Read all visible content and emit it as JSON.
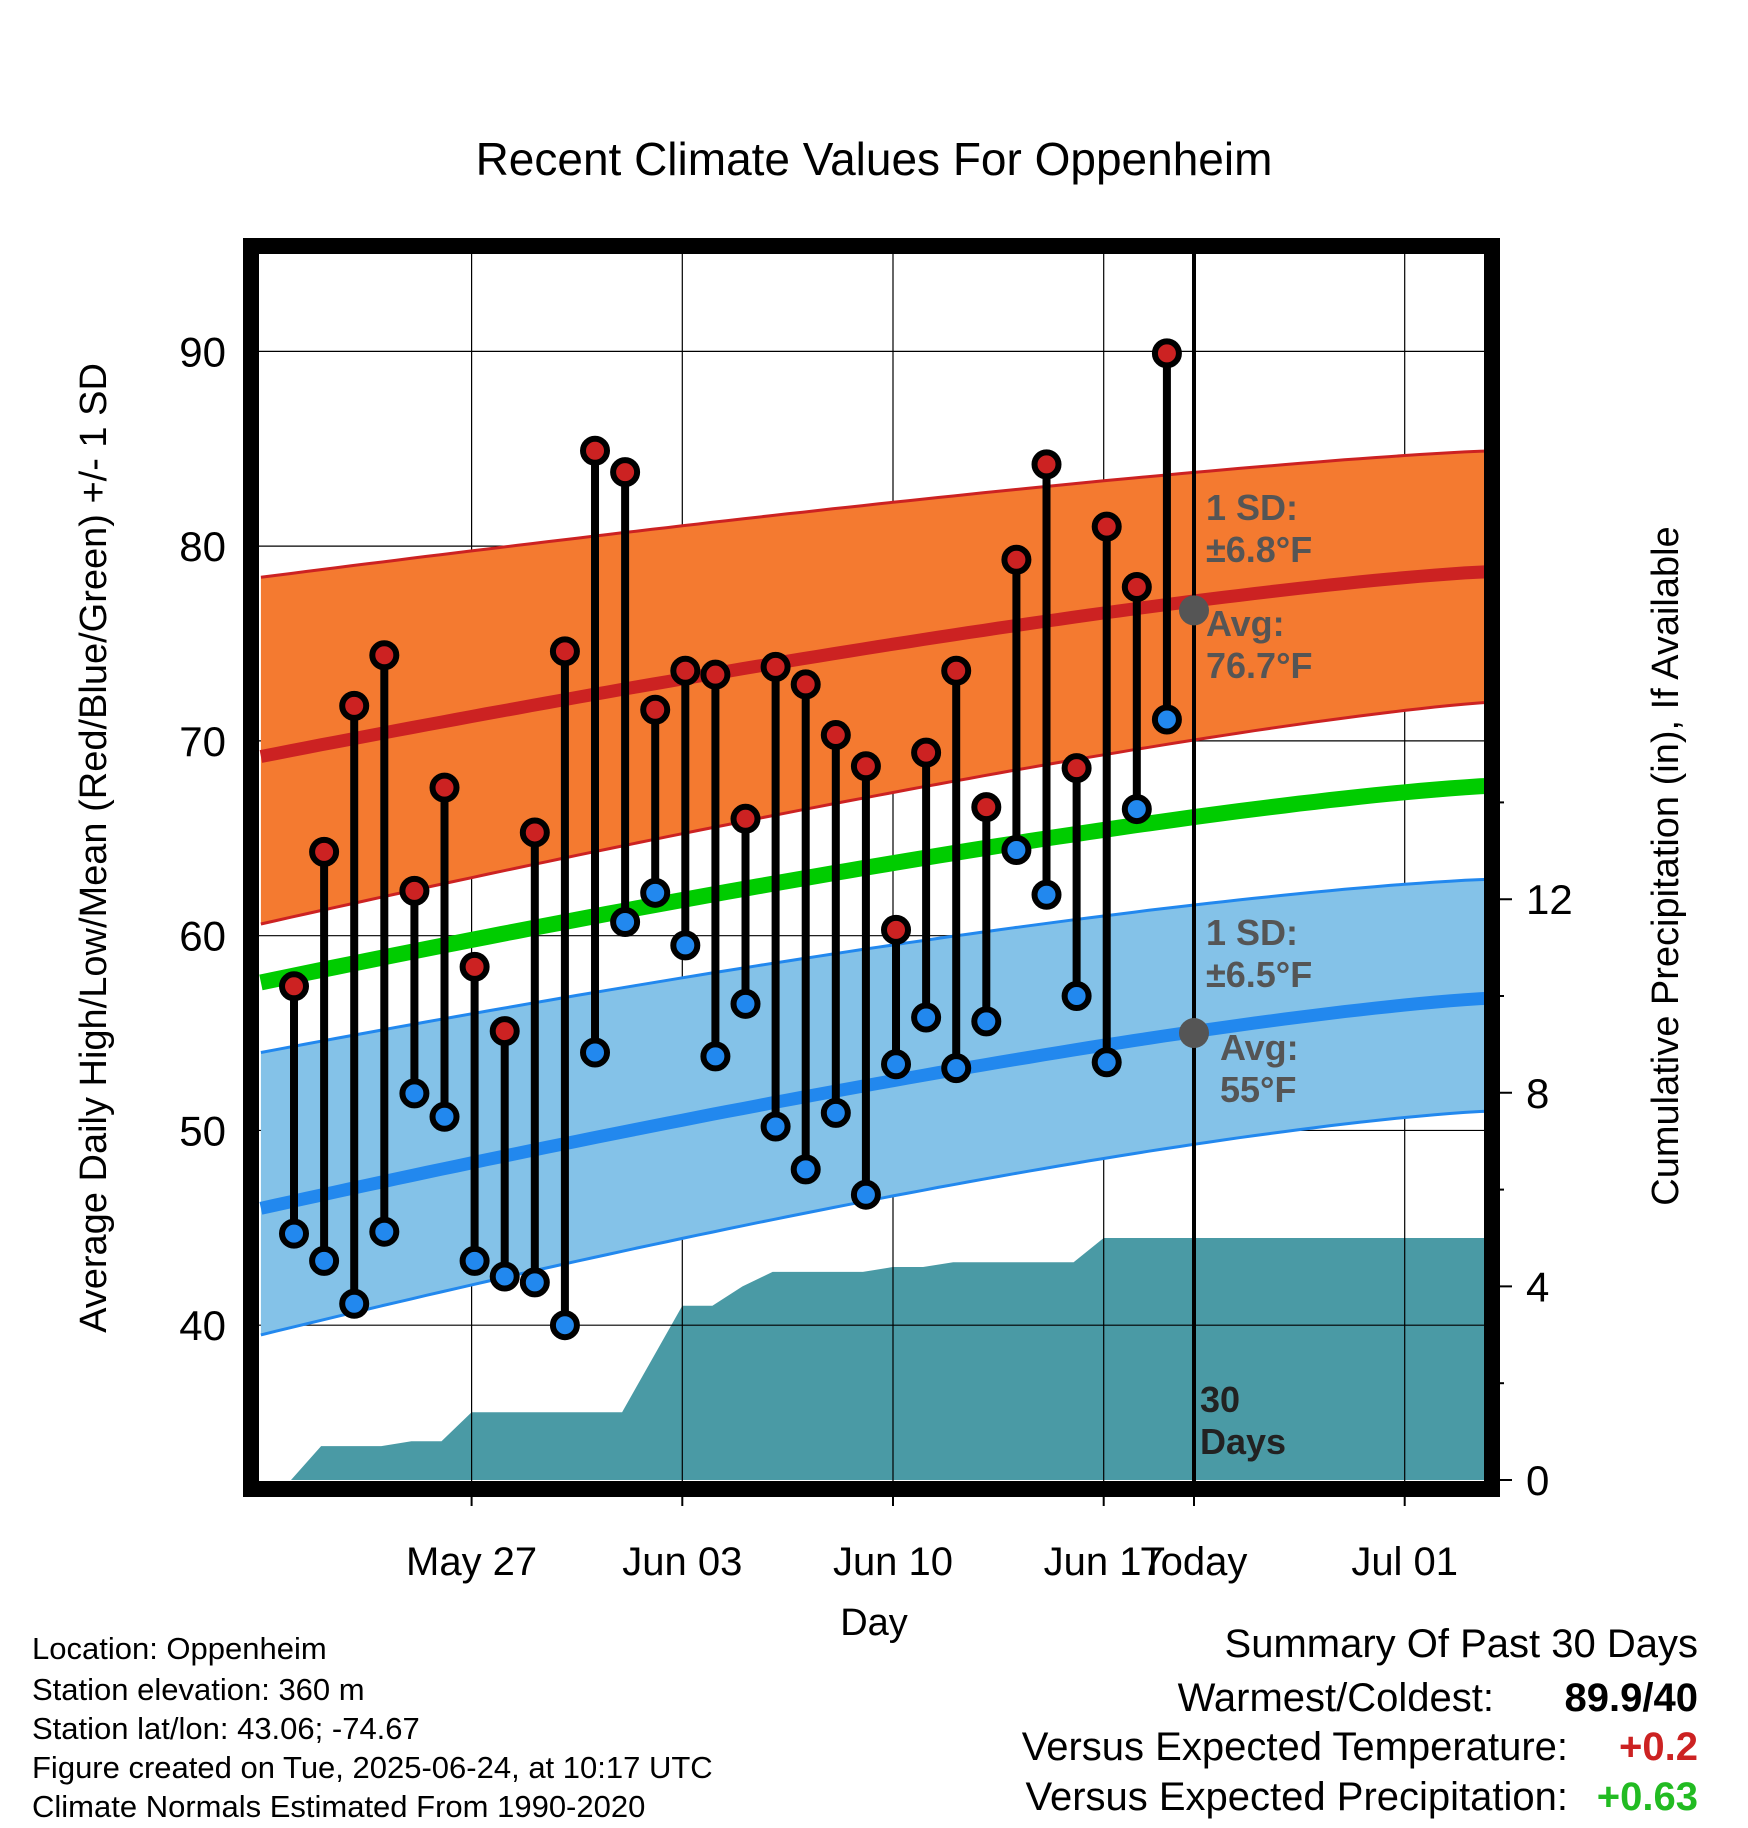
{
  "chart_data": {
    "type": "line",
    "title": "Recent Climate Values For Oppenheim",
    "xlabel": "Day",
    "ylabel": "Average Daily High/Low/Mean (Red/Blue/Green) +/- 1 SD",
    "y2label": "Cumulative Precipitation (in), If Available",
    "x_ticks": [
      "May 27",
      "Jun 03",
      "Jun 10",
      "Jun 17",
      "Today",
      "Jul 01"
    ],
    "y_ticks": [
      40,
      50,
      60,
      70,
      80,
      90
    ],
    "y2_ticks": [
      0,
      4,
      8,
      12
    ],
    "ylim": [
      32,
      95
    ],
    "y2lim": [
      0,
      20
    ],
    "x_day_range": [
      -31,
      10
    ],
    "daily_high": [
      57.4,
      64.3,
      71.8,
      74.4,
      62.3,
      67.6,
      58.4,
      55.1,
      65.3,
      74.6,
      84.9,
      83.8,
      71.6,
      73.6,
      73.4,
      66.0,
      73.8,
      72.9,
      70.3,
      68.7,
      60.3,
      69.4,
      73.6,
      66.6,
      79.3,
      84.2,
      68.6,
      81.0,
      77.9,
      89.9
    ],
    "daily_low": [
      44.7,
      43.3,
      41.1,
      44.8,
      51.9,
      50.7,
      43.3,
      42.5,
      42.2,
      40.0,
      54.0,
      60.7,
      62.2,
      59.5,
      53.8,
      56.5,
      50.2,
      48.0,
      50.9,
      46.7,
      53.4,
      55.8,
      53.2,
      55.6,
      64.4,
      62.1,
      56.9,
      53.5,
      66.5,
      71.1
    ],
    "normal_high": {
      "start": 69.2,
      "end": 78.7
    },
    "normal_low": {
      "start": 46.0,
      "end": 56.8
    },
    "normal_mean": {
      "start": 57.6,
      "end": 67.7
    },
    "high_band": {
      "lower_start": 60.6,
      "lower_end": 72.0,
      "upper_start": 78.4,
      "upper_end": 84.9
    },
    "low_band": {
      "lower_start": 39.5,
      "lower_end": 51.0,
      "upper_start": 54.0,
      "upper_end": 62.9
    },
    "cumulative_precip_day_offset": [
      -31,
      -30,
      -29,
      -28,
      -27,
      -26,
      -25,
      -24,
      -23,
      -22,
      -21,
      -20,
      -19,
      -18,
      -17,
      -16,
      -15,
      -14,
      -13,
      -12,
      -11,
      -10,
      -9,
      -8,
      -7,
      -6,
      -5,
      -4,
      -3,
      -2,
      -1,
      0,
      10
    ],
    "cumulative_precip": [
      0.0,
      0.0,
      0.7,
      0.7,
      0.7,
      0.8,
      0.8,
      1.4,
      1.4,
      1.4,
      1.4,
      1.4,
      1.4,
      2.5,
      3.6,
      3.6,
      4.0,
      4.3,
      4.3,
      4.3,
      4.3,
      4.4,
      4.4,
      4.5,
      4.5,
      4.5,
      4.5,
      4.5,
      5.0,
      5.0,
      5.0,
      5.0,
      5.0
    ],
    "annotations": {
      "high_sd": [
        "1 SD:",
        "±6.8°F"
      ],
      "high_avg": [
        "Avg:",
        "76.7°F"
      ],
      "low_sd": [
        "1 SD:",
        "±6.5°F"
      ],
      "low_avg": [
        "Avg:",
        "55°F"
      ],
      "today_high_avg": 76.7,
      "today_low_avg": 55.0,
      "window": [
        "30",
        "Days"
      ]
    }
  },
  "footer": {
    "location": "Location: Oppenheim",
    "elevation": "Station elevation: 360 m",
    "latlon": "Station lat/lon: 43.06; -74.67",
    "created": "Figure created on Tue, 2025-06-24, at 10:17 UTC",
    "normals": "Climate Normals Estimated From 1990-2020"
  },
  "summary": {
    "title": "Summary Of Past 30 Days",
    "warmest_label": "Warmest/Coldest:",
    "warmest_value": "89.9/40",
    "temp_label": "Versus Expected Temperature:",
    "temp_value": "+0.2",
    "precip_label": "Versus Expected Precipitation:",
    "precip_value": "+0.63"
  },
  "colors": {
    "high": "#cc2222",
    "high_band": "#f47a30",
    "low": "#2288ee",
    "low_band": "#84c2e8",
    "mean": "#00cc00",
    "precip": "#4a9aa5",
    "annotation": "#555555",
    "positive_temp": "#cc2222",
    "positive_precip": "#22bb22"
  }
}
